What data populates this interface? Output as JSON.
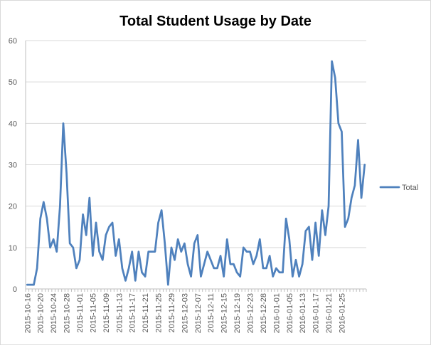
{
  "chart_data": {
    "type": "line",
    "title": "Total Student Usage by Date",
    "xlabel": "",
    "ylabel": "",
    "ylim": [
      0,
      60
    ],
    "y_ticks": [
      0,
      10,
      20,
      30,
      40,
      50,
      60
    ],
    "grid": "horizontal",
    "legend_position": "right",
    "x_tick_labels": [
      "2015-10-16",
      "2015-10-20",
      "2015-10-24",
      "2015-10-28",
      "2015-11-01",
      "2015-11-05",
      "2015-11-09",
      "2015-11-13",
      "2015-11-17",
      "2015-11-21",
      "2015-11-25",
      "2015-11-29",
      "2015-12-03",
      "2015-12-07",
      "2015-12-11",
      "2015-12-15",
      "2015-12-19",
      "2015-12-23",
      "2015-12-28",
      "2016-01-01",
      "2016-01-05",
      "2016-01-13",
      "2016-01-17",
      "2016-01-21",
      "2016-01-25"
    ],
    "series": [
      {
        "name": "Total",
        "color": "#4f81bd",
        "values": [
          1,
          1,
          1,
          5,
          17,
          21,
          17,
          10,
          12,
          9,
          20,
          40,
          28,
          11,
          10,
          5,
          7,
          18,
          13,
          22,
          8,
          16,
          9,
          7,
          13,
          15,
          16,
          8,
          12,
          5,
          2,
          5,
          9,
          2,
          9,
          4,
          3,
          9,
          9,
          9,
          16,
          19,
          11,
          1,
          10,
          7,
          12,
          9,
          11,
          6,
          3,
          11,
          13,
          3,
          6,
          9,
          7,
          5,
          5,
          8,
          3,
          12,
          6,
          6,
          4,
          3,
          10,
          9,
          9,
          6,
          8,
          12,
          5,
          5,
          8,
          3,
          5,
          4,
          4,
          17,
          12,
          3,
          7,
          3,
          6,
          14,
          15,
          7,
          16,
          8,
          19,
          13,
          20,
          55,
          51,
          40,
          38,
          15,
          17,
          22,
          25,
          36,
          22,
          30
        ]
      }
    ]
  }
}
